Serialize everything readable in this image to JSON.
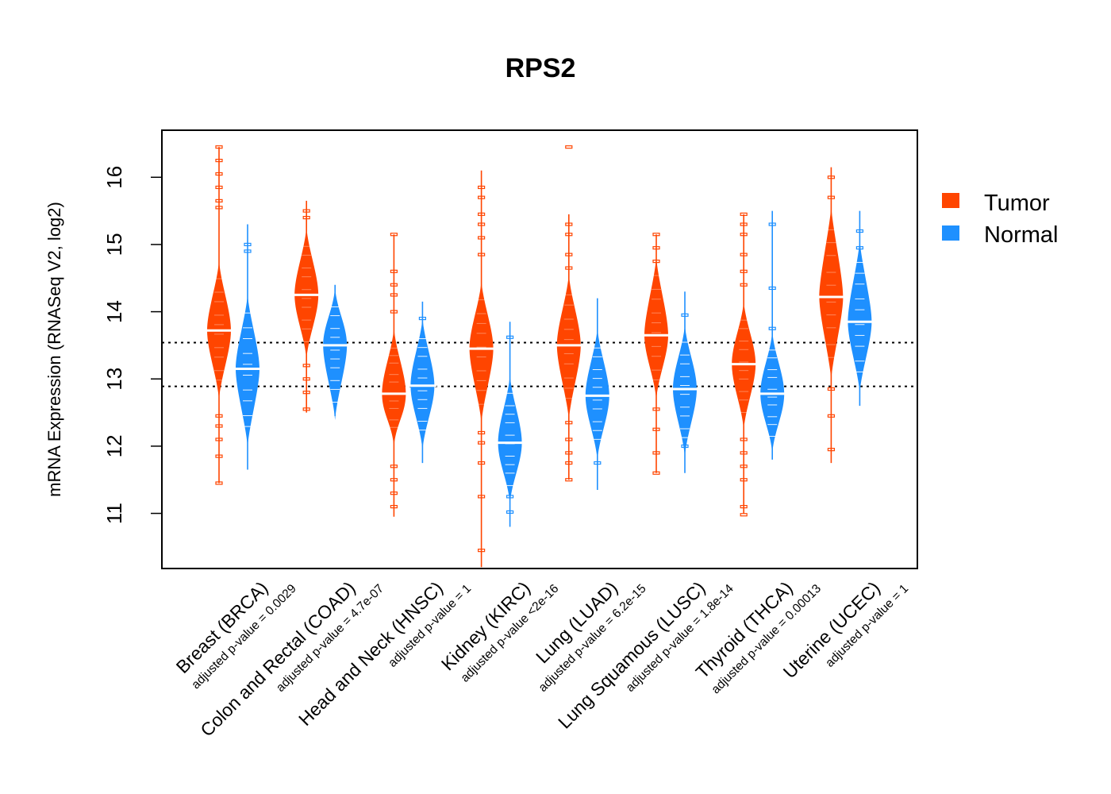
{
  "chart_data": {
    "type": "violin",
    "title": "RPS2",
    "xlabel": "",
    "ylabel": "mRNA Expression (RNASeq V2, log2)",
    "ylim": [
      10.18,
      16.7
    ],
    "yticks": [
      11,
      12,
      13,
      14,
      15,
      16
    ],
    "grid": false,
    "reference_lines": [
      13.54,
      12.89
    ],
    "legend": {
      "position": "right",
      "entries": [
        {
          "label": "Tumor",
          "color": "#FF4500"
        },
        {
          "label": "Normal",
          "color": "#1E90FF"
        }
      ]
    },
    "categories": [
      {
        "label": "Breast (BRCA)",
        "pvalue_text": "adjusted p-value = 0.0029"
      },
      {
        "label": "Colon and Rectal (COAD)",
        "pvalue_text": "adjusted p-value = 4.7e-07"
      },
      {
        "label": "Head and Neck (HNSC)",
        "pvalue_text": "adjusted p-value = 1"
      },
      {
        "label": "Kidney (KIRC)",
        "pvalue_text": "adjusted p-value <2e-16"
      },
      {
        "label": "Lung (LUAD)",
        "pvalue_text": "adjusted p-value = 6.2e-15"
      },
      {
        "label": "Lung Squamous (LUSC)",
        "pvalue_text": "adjusted p-value = 1.8e-14"
      },
      {
        "label": "Thyroid (THCA)",
        "pvalue_text": "adjusted p-value = 0.00013"
      },
      {
        "label": "Uterine (UCEC)",
        "pvalue_text": "adjusted p-value = 1"
      }
    ],
    "series": [
      {
        "name": "Tumor",
        "color": "#FF4500",
        "violins": [
          {
            "median": 13.72,
            "body": [
              12.9,
              14.55
            ],
            "whisker": [
              11.45,
              16.45
            ],
            "outliers": [
              16.45,
              16.25,
              16.05,
              15.85,
              15.65,
              15.55,
              12.45,
              12.3,
              12.1,
              11.85,
              11.45
            ]
          },
          {
            "median": 14.25,
            "body": [
              13.5,
              15.05
            ],
            "whisker": [
              12.5,
              15.65
            ],
            "outliers": [
              15.5,
              15.4,
              13.2,
              13.0,
              12.8,
              12.55
            ]
          },
          {
            "median": 12.78,
            "body": [
              12.2,
              13.55
            ],
            "whisker": [
              10.95,
              15.15
            ],
            "outliers": [
              15.15,
              14.6,
              14.4,
              14.25,
              14.0,
              11.7,
              11.5,
              11.3,
              11.1
            ]
          },
          {
            "median": 13.45,
            "body": [
              12.55,
              14.25
            ],
            "whisker": [
              10.2,
              16.1
            ],
            "outliers": [
              15.85,
              15.7,
              15.45,
              15.3,
              15.1,
              14.85,
              12.2,
              12.05,
              11.75,
              11.25,
              10.45
            ]
          },
          {
            "median": 13.5,
            "body": [
              12.6,
              14.35
            ],
            "whisker": [
              11.5,
              15.45
            ],
            "outliers": [
              16.45,
              15.3,
              15.15,
              14.85,
              14.65,
              12.35,
              12.1,
              11.9,
              11.75,
              11.5
            ]
          },
          {
            "median": 13.65,
            "body": [
              12.9,
              14.6
            ],
            "whisker": [
              11.6,
              15.15
            ],
            "outliers": [
              15.15,
              14.95,
              14.75,
              12.55,
              12.25,
              11.9,
              11.6
            ]
          },
          {
            "median": 13.22,
            "body": [
              12.45,
              13.95
            ],
            "whisker": [
              11.0,
              15.45
            ],
            "outliers": [
              15.45,
              15.3,
              15.15,
              14.85,
              14.6,
              14.4,
              12.1,
              11.9,
              11.7,
              11.5,
              11.1,
              10.98
            ]
          },
          {
            "median": 14.22,
            "body": [
              13.2,
              15.35
            ],
            "whisker": [
              11.75,
              16.15
            ],
            "outliers": [
              16.0,
              15.7,
              12.85,
              12.45,
              11.95
            ]
          }
        ]
      },
      {
        "name": "Normal",
        "color": "#1E90FF",
        "violins": [
          {
            "median": 13.15,
            "body": [
              12.2,
              14.05
            ],
            "whisker": [
              11.65,
              15.3
            ],
            "outliers": [
              15.0,
              14.9
            ]
          },
          {
            "median": 13.5,
            "body": [
              12.6,
              14.15
            ],
            "whisker": [
              12.45,
              14.4
            ],
            "outliers": []
          },
          {
            "median": 12.9,
            "body": [
              12.15,
              13.7
            ],
            "whisker": [
              11.75,
              14.15
            ],
            "outliers": [
              13.9
            ]
          },
          {
            "median": 12.05,
            "body": [
              11.35,
              12.85
            ],
            "whisker": [
              10.8,
              13.85
            ],
            "outliers": [
              13.62,
              11.25,
              11.02
            ]
          },
          {
            "median": 12.75,
            "body": [
              12.0,
              13.55
            ],
            "whisker": [
              11.35,
              14.2
            ],
            "outliers": [
              11.75
            ]
          },
          {
            "median": 12.85,
            "body": [
              12.05,
              13.6
            ],
            "whisker": [
              11.6,
              14.3
            ],
            "outliers": [
              13.95,
              12.0
            ]
          },
          {
            "median": 12.78,
            "body": [
              12.1,
              13.5
            ],
            "whisker": [
              11.8,
              15.5
            ],
            "outliers": [
              15.3,
              14.35,
              13.75
            ]
          },
          {
            "median": 13.85,
            "body": [
              13.0,
              14.85
            ],
            "whisker": [
              12.6,
              15.5
            ],
            "outliers": [
              15.2,
              14.95
            ]
          }
        ]
      }
    ]
  }
}
